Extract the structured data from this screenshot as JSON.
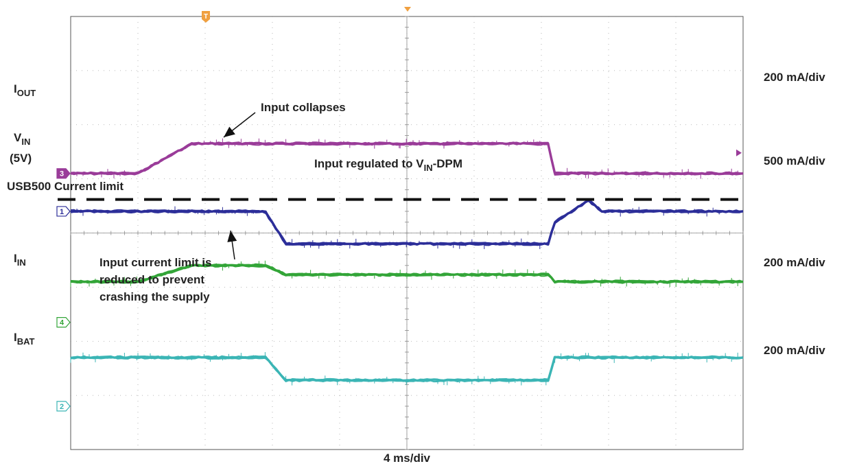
{
  "chart_data": {
    "type": "line",
    "title": "",
    "x_scale": "4 ms/div",
    "grid": true,
    "x": [
      0,
      0.8,
      1.0,
      1.8,
      2.8,
      2.9,
      3.2,
      3.6,
      4.9,
      5.0,
      5.6,
      7.1,
      7.2,
      7.7,
      7.9,
      10.0
    ],
    "series": [
      {
        "name": "IOUT",
        "label": "I",
        "label_sub": "OUT",
        "scale": "200 mA/div",
        "channel": "3",
        "color": "#9a3c99",
        "values": [
          5.1,
          5.1,
          5.1,
          5.65,
          5.65,
          5.65,
          5.65,
          5.65,
          5.65,
          5.65,
          5.65,
          5.65,
          5.1,
          5.1,
          5.1,
          5.1
        ]
      },
      {
        "name": "VIN",
        "label": "V",
        "label_sub": "IN",
        "label_extra": "(5V)",
        "scale": "500 mA/div",
        "channel": "1",
        "color": "#2c2e99",
        "values": [
          4.4,
          4.4,
          4.4,
          4.4,
          4.4,
          4.38,
          3.8,
          3.8,
          3.8,
          3.8,
          3.8,
          3.8,
          4.2,
          4.6,
          4.4,
          4.4
        ]
      },
      {
        "name": "IIN",
        "label": "I",
        "label_sub": "IN",
        "scale": "200 mA/div",
        "channel": "4",
        "color": "#33a538",
        "values": [
          3.1,
          3.1,
          3.1,
          3.4,
          3.4,
          3.4,
          3.23,
          3.23,
          3.23,
          3.23,
          3.23,
          3.23,
          3.1,
          3.1,
          3.1,
          3.1
        ]
      },
      {
        "name": "IBAT",
        "label": "I",
        "label_sub": "BAT",
        "scale": "200 mA/div",
        "channel": "2",
        "color": "#3bb5b5",
        "values": [
          1.7,
          1.7,
          1.7,
          1.7,
          1.7,
          1.7,
          1.28,
          1.28,
          1.28,
          1.28,
          1.28,
          1.28,
          1.7,
          1.7,
          1.7,
          1.7
        ]
      }
    ],
    "annotations": {
      "input_collapses": "Input collapses",
      "regulated": "Input regulated to V",
      "regulated_sub": "IN",
      "regulated_tail": "-DPM",
      "usb_limit": "USB500 Current limit",
      "current_limit_lines": [
        "Input current limit is",
        "reduced to prevent",
        "crashing the supply"
      ]
    },
    "markers": {
      "trigger": "T"
    }
  }
}
